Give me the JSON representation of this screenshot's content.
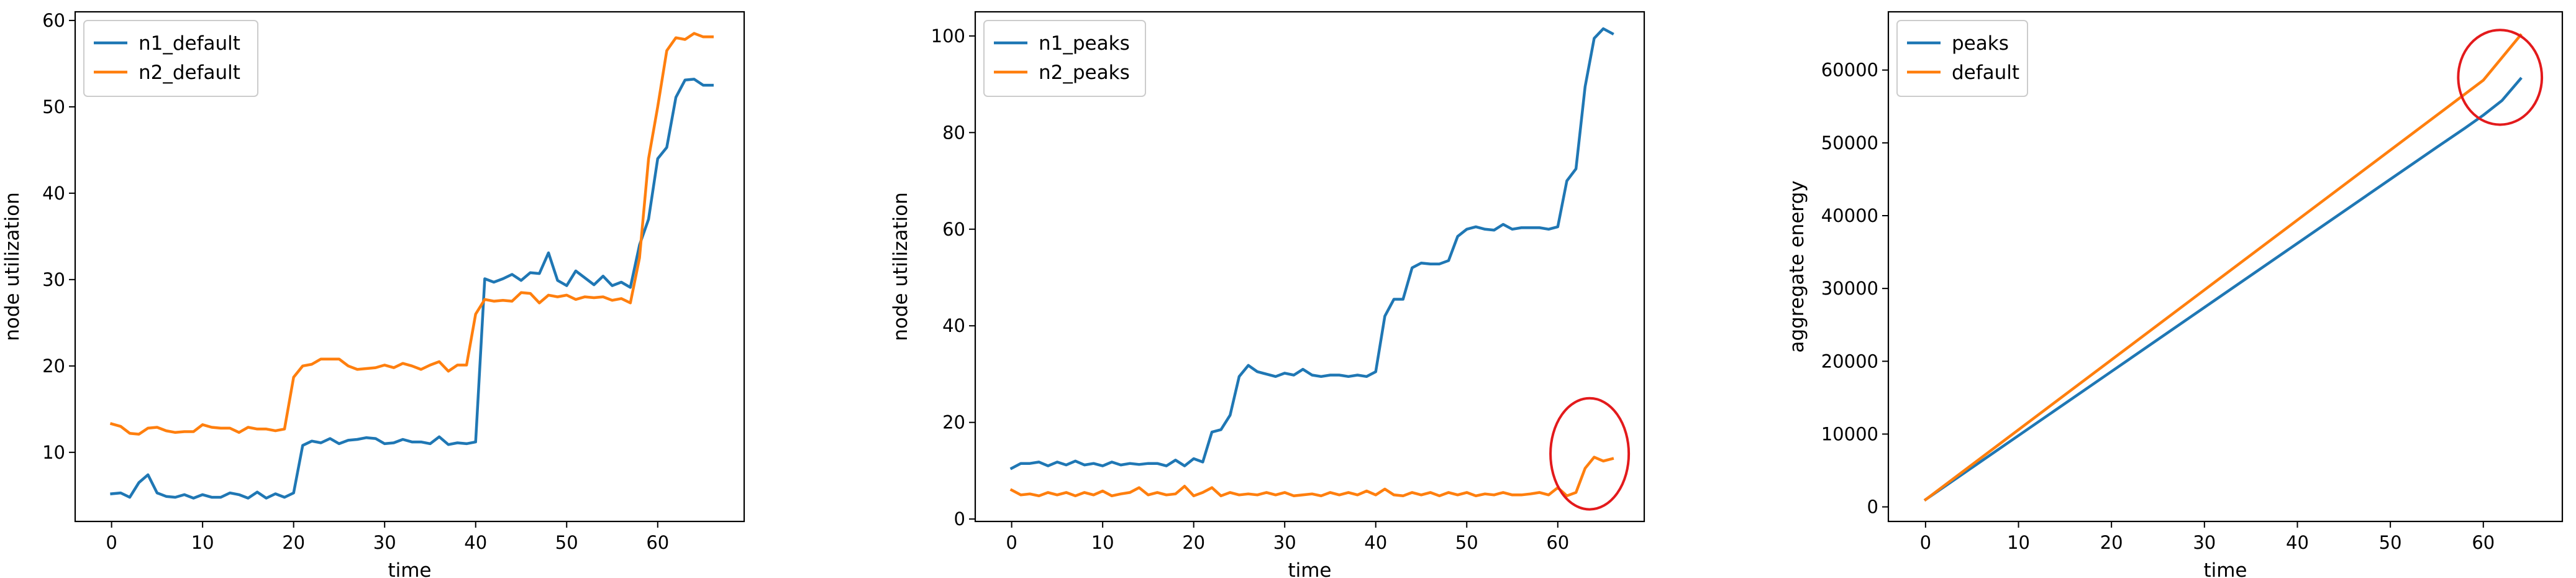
{
  "chart_data": [
    {
      "type": "line",
      "xlabel": "time",
      "ylabel": "node utilization",
      "xlim": [
        -4,
        69.5
      ],
      "ylim": [
        2,
        61
      ],
      "xticks": [
        0,
        10,
        20,
        30,
        40,
        50,
        60
      ],
      "yticks": [
        10,
        20,
        30,
        40,
        50,
        60
      ],
      "legend_position": "top-left",
      "grid": false,
      "series": [
        {
          "name": "n1_default",
          "color": "#1f77b4",
          "x": [
            0,
            1,
            2,
            3,
            4,
            5,
            6,
            7,
            8,
            9,
            10,
            11,
            12,
            13,
            14,
            15,
            16,
            17,
            18,
            19,
            20,
            21,
            22,
            23,
            24,
            25,
            26,
            27,
            28,
            29,
            30,
            31,
            32,
            33,
            34,
            35,
            36,
            37,
            38,
            39,
            40,
            41,
            42,
            43,
            44,
            45,
            46,
            47,
            48,
            49,
            50,
            51,
            52,
            53,
            54,
            55,
            56,
            57,
            58,
            59,
            60,
            61,
            62,
            63,
            64,
            65,
            66
          ],
          "y": [
            5.2,
            5.3,
            4.8,
            6.5,
            7.4,
            5.3,
            4.9,
            4.8,
            5.1,
            4.7,
            5.1,
            4.8,
            4.8,
            5.3,
            5.1,
            4.7,
            5.4,
            4.7,
            5.2,
            4.8,
            5.3,
            10.8,
            11.3,
            11.1,
            11.6,
            11.0,
            11.4,
            11.5,
            11.7,
            11.6,
            11.0,
            11.1,
            11.5,
            11.2,
            11.2,
            11.0,
            11.8,
            10.9,
            11.1,
            11.0,
            11.2,
            30.1,
            29.7,
            30.1,
            30.6,
            29.9,
            30.8,
            30.7,
            33.1,
            29.9,
            29.3,
            31.0,
            30.2,
            29.4,
            30.4,
            29.3,
            29.7,
            29.1,
            34.0,
            37.0,
            44.0,
            45.3,
            51.1,
            53.1,
            53.2,
            52.5,
            52.5
          ]
        },
        {
          "name": "n2_default",
          "color": "#ff7f0e",
          "x": [
            0,
            1,
            2,
            3,
            4,
            5,
            6,
            7,
            8,
            9,
            10,
            11,
            12,
            13,
            14,
            15,
            16,
            17,
            18,
            19,
            20,
            21,
            22,
            23,
            24,
            25,
            26,
            27,
            28,
            29,
            30,
            31,
            32,
            33,
            34,
            35,
            36,
            37,
            38,
            39,
            40,
            41,
            42,
            43,
            44,
            45,
            46,
            47,
            48,
            49,
            50,
            51,
            52,
            53,
            54,
            55,
            56,
            57,
            58,
            59,
            60,
            61,
            62,
            63,
            64,
            65,
            66
          ],
          "y": [
            13.3,
            13.0,
            12.2,
            12.1,
            12.8,
            12.9,
            12.5,
            12.3,
            12.4,
            12.4,
            13.2,
            12.9,
            12.8,
            12.8,
            12.3,
            12.9,
            12.7,
            12.7,
            12.5,
            12.7,
            18.7,
            20.0,
            20.2,
            20.8,
            20.8,
            20.8,
            20.0,
            19.6,
            19.7,
            19.8,
            20.1,
            19.8,
            20.3,
            20.0,
            19.6,
            20.1,
            20.5,
            19.4,
            20.1,
            20.1,
            26.0,
            27.7,
            27.5,
            27.6,
            27.5,
            28.5,
            28.4,
            27.3,
            28.2,
            28.0,
            28.2,
            27.7,
            28.0,
            27.9,
            28.0,
            27.6,
            27.8,
            27.3,
            32.5,
            44.0,
            50.0,
            56.5,
            58.0,
            57.8,
            58.5,
            58.1,
            58.1
          ]
        }
      ]
    },
    {
      "type": "line",
      "xlabel": "time",
      "ylabel": "node utilization",
      "xlim": [
        -4,
        69.5
      ],
      "ylim": [
        -0.5,
        105
      ],
      "xticks": [
        0,
        10,
        20,
        30,
        40,
        50,
        60
      ],
      "yticks": [
        0,
        20,
        40,
        60,
        80,
        100
      ],
      "legend_position": "top-left",
      "grid": false,
      "annotations": [
        {
          "type": "circle",
          "color": "#e31a1c",
          "cx": 63.5,
          "cy": 13.5,
          "rx": 4.3,
          "ry": 11.5
        }
      ],
      "series": [
        {
          "name": "n1_peaks",
          "color": "#1f77b4",
          "x": [
            0,
            1,
            2,
            3,
            4,
            5,
            6,
            7,
            8,
            9,
            10,
            11,
            12,
            13,
            14,
            15,
            16,
            17,
            18,
            19,
            20,
            21,
            22,
            23,
            24,
            25,
            26,
            27,
            28,
            29,
            30,
            31,
            32,
            33,
            34,
            35,
            36,
            37,
            38,
            39,
            40,
            41,
            42,
            43,
            44,
            45,
            46,
            47,
            48,
            49,
            50,
            51,
            52,
            53,
            54,
            55,
            56,
            57,
            58,
            59,
            60,
            61,
            62,
            63,
            64,
            65,
            66
          ],
          "y": [
            10.5,
            11.5,
            11.5,
            11.8,
            11.0,
            11.8,
            11.2,
            12.0,
            11.2,
            11.5,
            11.0,
            11.8,
            11.2,
            11.5,
            11.3,
            11.5,
            11.5,
            11.0,
            12.2,
            11.0,
            12.5,
            11.8,
            18.0,
            18.5,
            21.5,
            29.5,
            31.8,
            30.5,
            30.0,
            29.5,
            30.2,
            29.8,
            31.0,
            29.8,
            29.5,
            29.8,
            29.8,
            29.5,
            29.8,
            29.5,
            30.5,
            42.0,
            45.5,
            45.5,
            52.0,
            53.0,
            52.8,
            52.8,
            53.5,
            58.5,
            60.0,
            60.5,
            60.0,
            59.8,
            61.0,
            60.0,
            60.3,
            60.3,
            60.3,
            60.0,
            60.5,
            70.0,
            72.5,
            89.5,
            99.5,
            101.5,
            100.5
          ]
        },
        {
          "name": "n2_peaks",
          "color": "#ff7f0e",
          "x": [
            0,
            1,
            2,
            3,
            4,
            5,
            6,
            7,
            8,
            9,
            10,
            11,
            12,
            13,
            14,
            15,
            16,
            17,
            18,
            19,
            20,
            21,
            22,
            23,
            24,
            25,
            26,
            27,
            28,
            29,
            30,
            31,
            32,
            33,
            34,
            35,
            36,
            37,
            38,
            39,
            40,
            41,
            42,
            43,
            44,
            45,
            46,
            47,
            48,
            49,
            50,
            51,
            52,
            53,
            54,
            55,
            56,
            57,
            58,
            59,
            60,
            61,
            62,
            63,
            64,
            65,
            66
          ],
          "y": [
            6.0,
            5.0,
            5.2,
            4.8,
            5.5,
            5.0,
            5.5,
            4.8,
            5.5,
            5.0,
            5.8,
            4.8,
            5.2,
            5.5,
            6.5,
            5.0,
            5.5,
            5.0,
            5.2,
            6.8,
            4.8,
            5.5,
            6.5,
            4.8,
            5.5,
            5.0,
            5.2,
            5.0,
            5.5,
            5.0,
            5.5,
            4.8,
            5.0,
            5.2,
            4.8,
            5.5,
            5.0,
            5.5,
            5.0,
            5.8,
            5.0,
            6.2,
            5.0,
            4.8,
            5.5,
            5.0,
            5.5,
            4.8,
            5.5,
            5.0,
            5.5,
            4.8,
            5.2,
            5.0,
            5.5,
            5.0,
            5.0,
            5.2,
            5.5,
            5.0,
            6.5,
            4.8,
            5.5,
            10.5,
            12.8,
            12.0,
            12.5
          ]
        }
      ]
    },
    {
      "type": "line",
      "xlabel": "time",
      "ylabel": "aggregate energy",
      "xlim": [
        -4,
        68.5
      ],
      "ylim": [
        -2000,
        68000
      ],
      "xticks": [
        0,
        10,
        20,
        30,
        40,
        50,
        60
      ],
      "yticks": [
        0,
        10000,
        20000,
        30000,
        40000,
        50000,
        60000
      ],
      "legend_position": "top-left",
      "grid": false,
      "annotations": [
        {
          "type": "circle",
          "color": "#e31a1c",
          "cx": 61.8,
          "cy": 59000,
          "rx": 4.5,
          "ry": 6500
        }
      ],
      "series": [
        {
          "name": "peaks",
          "color": "#1f77b4",
          "x": [
            0,
            10,
            20,
            30,
            40,
            50,
            55,
            58,
            60,
            62,
            64
          ],
          "y": [
            1000,
            9800,
            18600,
            27400,
            36200,
            45000,
            49400,
            52000,
            53800,
            55800,
            58800
          ]
        },
        {
          "name": "default",
          "color": "#ff7f0e",
          "x": [
            0,
            10,
            20,
            30,
            40,
            50,
            60,
            64
          ],
          "y": [
            1000,
            10600,
            20200,
            29800,
            39400,
            49000,
            58600,
            64800
          ]
        }
      ]
    }
  ]
}
